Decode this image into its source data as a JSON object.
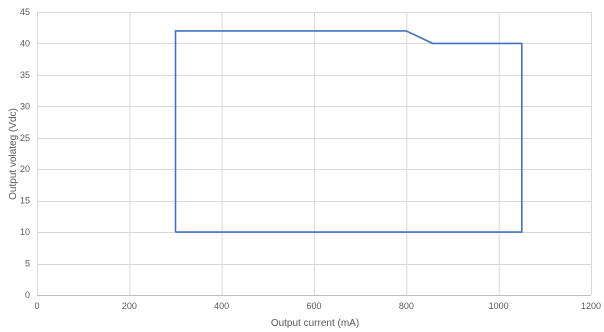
{
  "chart_data": {
    "type": "line",
    "title": "",
    "xlabel": "Output current (mA)",
    "ylabel": "Output  volateg (Vdc)",
    "xlim": [
      0,
      1200
    ],
    "ylim": [
      0,
      45
    ],
    "x_ticks": [
      0,
      200,
      400,
      600,
      800,
      1000,
      1200
    ],
    "y_ticks": [
      0,
      5,
      10,
      15,
      20,
      25,
      30,
      35,
      40,
      45
    ],
    "grid": true,
    "legend": "none",
    "series": [
      {
        "color": "#4472c4",
        "points": [
          {
            "x": 300,
            "y": 10
          },
          {
            "x": 300,
            "y": 42
          },
          {
            "x": 800,
            "y": 42
          },
          {
            "x": 857,
            "y": 40
          },
          {
            "x": 1050,
            "y": 40
          },
          {
            "x": 1050,
            "y": 10
          },
          {
            "x": 300,
            "y": 10
          }
        ]
      }
    ]
  }
}
